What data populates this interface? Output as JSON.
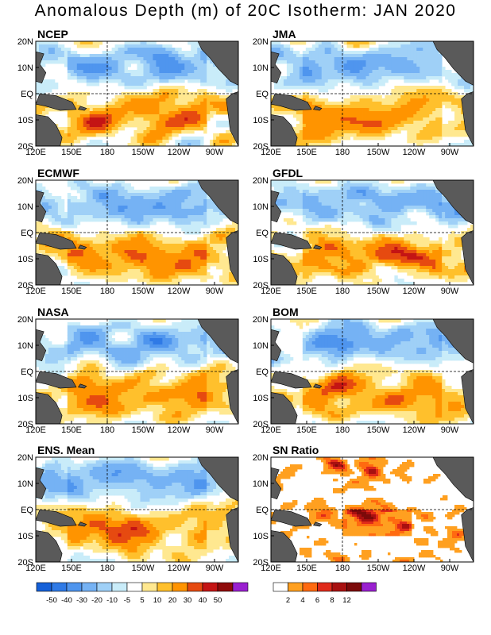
{
  "title": "Anomalous Depth (m) of 20C Isotherm: JAN 2020",
  "lat_ticks": [
    "20N",
    "10N",
    "EQ",
    "10S",
    "20S"
  ],
  "lon_ticks": [
    "120E",
    "150E",
    "180",
    "150W",
    "120W",
    "90W"
  ],
  "panels": [
    {
      "label": "NCEP"
    },
    {
      "label": "JMA"
    },
    {
      "label": "ECMWF"
    },
    {
      "label": "GFDL"
    },
    {
      "label": "NASA"
    },
    {
      "label": "BOM"
    },
    {
      "label": "ENS. Mean"
    },
    {
      "label": "SN Ratio"
    }
  ],
  "anomaly_colorbar": {
    "labels": [
      "-50",
      "-40",
      "-30",
      "-20",
      "-10",
      "-5",
      "5",
      "10",
      "20",
      "30",
      "40",
      "50"
    ],
    "colors": [
      "#1560d8",
      "#2f7ae6",
      "#4f95ee",
      "#75b2f4",
      "#9fd0f7",
      "#c9ecf9",
      "#ffffff",
      "#ffe890",
      "#ffc02c",
      "#ff9400",
      "#e64a10",
      "#c41414",
      "#8f0a0a",
      "#9a20d0"
    ]
  },
  "snr_colorbar": {
    "labels": [
      "2",
      "4",
      "6",
      "8",
      "12"
    ],
    "colors": [
      "#ffffff",
      "#ffa020",
      "#ff6a10",
      "#e02a1a",
      "#a81010",
      "#7c0a0a",
      "#9a20d0"
    ]
  },
  "colors": {
    "land": "#5a5a5a",
    "grid": "#000000",
    "frame": "#000000"
  }
}
